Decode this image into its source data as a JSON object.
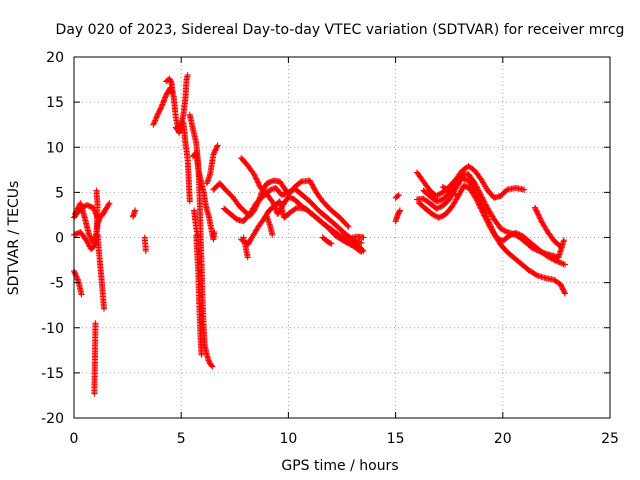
{
  "chart_data": {
    "type": "scatter",
    "title": "Day 020 of 2023, Sidereal Day-to-day VTEC variation (SDTVAR) for receiver mrcg",
    "xlabel": "GPS time / hours",
    "ylabel": "SDTVAR / TECUs",
    "xlim": [
      0,
      25
    ],
    "ylim": [
      -20,
      20
    ],
    "xticks": [
      0,
      5,
      10,
      15,
      20,
      25
    ],
    "yticks": [
      -20,
      -15,
      -10,
      -5,
      0,
      5,
      10,
      15,
      20
    ],
    "grid": true,
    "marker": "plus",
    "color": "#ff0000",
    "tracks": [
      [
        [
          0.0,
          2.2
        ],
        [
          0.3,
          3.2
        ],
        [
          0.6,
          3.6
        ],
        [
          0.9,
          3.3
        ],
        [
          1.1,
          2.2
        ],
        [
          1.3,
          2.4
        ],
        [
          1.5,
          3.2
        ],
        [
          1.65,
          3.8
        ]
      ],
      [
        [
          0.0,
          0.3
        ],
        [
          0.3,
          0.6
        ],
        [
          0.6,
          -0.4
        ],
        [
          0.8,
          -1.3
        ],
        [
          1.0,
          -0.8
        ],
        [
          1.1,
          1.5
        ],
        [
          1.2,
          2.2
        ]
      ],
      [
        [
          0.05,
          2.6
        ],
        [
          0.3,
          3.8
        ],
        [
          0.5,
          2.2
        ],
        [
          0.7,
          0.3
        ],
        [
          0.9,
          -0.6
        ],
        [
          1.05,
          0.5
        ],
        [
          1.1,
          3.5
        ],
        [
          1.05,
          5.2
        ]
      ],
      [
        [
          0.0,
          -3.7
        ],
        [
          0.2,
          -4.8
        ],
        [
          0.35,
          -6.3
        ]
      ],
      [
        [
          1.0,
          -9.5
        ],
        [
          0.98,
          -13.0
        ],
        [
          0.95,
          -17.3
        ]
      ],
      [
        [
          1.1,
          0.3
        ],
        [
          1.2,
          -2.5
        ],
        [
          1.3,
          -5.0
        ],
        [
          1.4,
          -7.9
        ]
      ],
      [
        [
          2.75,
          2.3
        ],
        [
          2.85,
          3.0
        ]
      ],
      [
        [
          3.3,
          0.0
        ],
        [
          3.35,
          -1.5
        ]
      ],
      [
        [
          3.7,
          12.5
        ],
        [
          3.9,
          13.6
        ],
        [
          4.1,
          14.6
        ],
        [
          4.3,
          15.8
        ],
        [
          4.5,
          16.6
        ],
        [
          4.65,
          15.6
        ],
        [
          4.75,
          13.3
        ],
        [
          4.9,
          11.6
        ],
        [
          5.1,
          13.5
        ],
        [
          5.2,
          15.5
        ],
        [
          5.25,
          17.5
        ],
        [
          5.3,
          18.0
        ]
      ],
      [
        [
          4.3,
          17.3
        ],
        [
          4.45,
          17.6
        ],
        [
          4.55,
          17.1
        ],
        [
          4.6,
          16.0
        ]
      ],
      [
        [
          4.75,
          12.2
        ],
        [
          4.9,
          11.7
        ],
        [
          5.0,
          11.9
        ]
      ],
      [
        [
          5.1,
          12.8
        ],
        [
          5.2,
          10.5
        ],
        [
          5.3,
          8.7
        ],
        [
          5.35,
          6.5
        ],
        [
          5.4,
          4.0
        ]
      ],
      [
        [
          5.4,
          13.6
        ],
        [
          5.55,
          12.0
        ],
        [
          5.7,
          10.5
        ],
        [
          5.8,
          8.0
        ],
        [
          5.85,
          5.0
        ],
        [
          5.9,
          1.0
        ],
        [
          5.95,
          -3.0
        ],
        [
          6.0,
          -7.0
        ],
        [
          6.05,
          -10.0
        ],
        [
          6.1,
          -12.0
        ],
        [
          6.2,
          -13.0
        ],
        [
          6.3,
          -13.8
        ],
        [
          6.45,
          -14.3
        ]
      ],
      [
        [
          5.7,
          0.2
        ],
        [
          5.8,
          -4.0
        ],
        [
          5.85,
          -8.0
        ],
        [
          5.9,
          -11.0
        ],
        [
          5.95,
          -13.0
        ]
      ],
      [
        [
          5.55,
          9.0
        ],
        [
          5.7,
          9.4
        ],
        [
          5.8,
          7.5
        ],
        [
          5.95,
          6.0
        ],
        [
          6.05,
          5.0
        ],
        [
          6.15,
          3.5
        ],
        [
          6.3,
          2.2
        ],
        [
          6.4,
          1.0
        ],
        [
          6.5,
          -0.2
        ],
        [
          6.55,
          0.6
        ]
      ],
      [
        [
          6.2,
          6.0
        ],
        [
          6.35,
          7.0
        ],
        [
          6.5,
          9.2
        ],
        [
          6.7,
          10.2
        ]
      ],
      [
        [
          5.6,
          3.0
        ],
        [
          5.7,
          1.0
        ],
        [
          5.8,
          0.0
        ]
      ],
      [
        [
          6.5,
          5.3
        ],
        [
          6.8,
          6.0
        ],
        [
          7.1,
          5.2
        ],
        [
          7.4,
          4.5
        ],
        [
          7.7,
          3.5
        ],
        [
          8.0,
          2.8
        ],
        [
          8.2,
          2.4
        ],
        [
          8.4,
          3.0
        ],
        [
          8.6,
          4.0
        ],
        [
          8.8,
          5.2
        ],
        [
          9.0,
          6.0
        ],
        [
          9.3,
          6.3
        ],
        [
          9.6,
          6.2
        ],
        [
          9.8,
          5.5
        ],
        [
          10.0,
          4.8
        ],
        [
          10.3,
          5.6
        ],
        [
          10.6,
          6.2
        ],
        [
          11.0,
          6.3
        ],
        [
          11.3,
          5.0
        ],
        [
          11.6,
          4.0
        ],
        [
          12.0,
          3.0
        ],
        [
          12.4,
          2.2
        ],
        [
          12.8,
          1.2
        ]
      ],
      [
        [
          7.0,
          3.2
        ],
        [
          7.3,
          2.6
        ],
        [
          7.6,
          2.0
        ],
        [
          7.9,
          1.8
        ],
        [
          8.2,
          2.6
        ],
        [
          8.5,
          3.8
        ],
        [
          8.8,
          4.5
        ],
        [
          9.1,
          5.2
        ],
        [
          9.4,
          5.5
        ],
        [
          9.7,
          4.7
        ],
        [
          10.0,
          5.0
        ],
        [
          10.3,
          5.4
        ],
        [
          10.6,
          4.8
        ],
        [
          11.0,
          4.0
        ],
        [
          11.4,
          3.0
        ],
        [
          11.8,
          2.2
        ],
        [
          12.2,
          1.4
        ],
        [
          12.6,
          0.5
        ],
        [
          13.0,
          -0.2
        ],
        [
          13.4,
          -0.6
        ]
      ],
      [
        [
          7.8,
          -0.2
        ],
        [
          8.1,
          -0.8
        ],
        [
          8.3,
          0.0
        ],
        [
          8.6,
          1.2
        ],
        [
          8.9,
          2.2
        ],
        [
          9.1,
          3.0
        ],
        [
          9.4,
          3.6
        ],
        [
          9.6,
          4.0
        ],
        [
          9.8,
          2.2
        ],
        [
          10.1,
          2.8
        ],
        [
          10.4,
          3.3
        ],
        [
          10.8,
          3.2
        ],
        [
          11.2,
          2.4
        ],
        [
          11.6,
          1.6
        ],
        [
          12.0,
          0.9
        ],
        [
          12.4,
          0.2
        ],
        [
          12.8,
          -0.3
        ],
        [
          13.2,
          -0.8
        ],
        [
          13.5,
          -1.5
        ]
      ],
      [
        [
          7.8,
          8.8
        ],
        [
          8.1,
          8.0
        ],
        [
          8.4,
          7.0
        ],
        [
          8.7,
          5.5
        ],
        [
          9.0,
          4.8
        ],
        [
          9.3,
          3.8
        ],
        [
          9.5,
          2.6
        ],
        [
          9.8,
          3.8
        ],
        [
          10.0,
          4.5
        ],
        [
          10.3,
          4.2
        ],
        [
          10.6,
          3.5
        ],
        [
          11.0,
          2.8
        ],
        [
          11.4,
          2.0
        ],
        [
          11.8,
          1.2
        ],
        [
          12.2,
          0.2
        ],
        [
          12.6,
          -0.4
        ],
        [
          13.0,
          -0.9
        ],
        [
          13.4,
          -1.6
        ]
      ],
      [
        [
          7.9,
          0.0
        ],
        [
          8.0,
          -1.0
        ],
        [
          8.1,
          -2.2
        ]
      ],
      [
        [
          9.0,
          2.3
        ],
        [
          9.15,
          1.3
        ],
        [
          9.25,
          0.3
        ]
      ],
      [
        [
          11.6,
          0.0
        ],
        [
          11.8,
          -0.4
        ],
        [
          12.0,
          -0.7
        ]
      ],
      [
        [
          13.0,
          0.0
        ],
        [
          13.2,
          0.1
        ],
        [
          13.5,
          0.0
        ]
      ],
      [
        [
          15.0,
          1.8
        ],
        [
          15.1,
          2.5
        ],
        [
          15.2,
          3.0
        ]
      ],
      [
        [
          15.0,
          4.4
        ],
        [
          15.15,
          4.7
        ]
      ],
      [
        [
          16.0,
          7.2
        ],
        [
          16.3,
          6.2
        ],
        [
          16.6,
          5.2
        ],
        [
          16.9,
          4.6
        ],
        [
          17.2,
          5.0
        ],
        [
          17.5,
          5.6
        ],
        [
          17.8,
          6.4
        ],
        [
          18.1,
          7.4
        ],
        [
          18.4,
          7.9
        ],
        [
          18.7,
          7.4
        ],
        [
          19.0,
          6.4
        ],
        [
          19.3,
          5.2
        ],
        [
          19.6,
          4.4
        ],
        [
          19.9,
          4.6
        ],
        [
          20.2,
          5.3
        ],
        [
          20.6,
          5.5
        ],
        [
          21.0,
          5.3
        ]
      ],
      [
        [
          16.0,
          4.2
        ],
        [
          16.3,
          4.3
        ],
        [
          16.6,
          3.8
        ],
        [
          16.9,
          3.2
        ],
        [
          17.2,
          3.5
        ],
        [
          17.5,
          4.2
        ],
        [
          17.8,
          5.4
        ],
        [
          18.1,
          6.6
        ],
        [
          18.4,
          6.3
        ],
        [
          18.7,
          5.2
        ],
        [
          19.0,
          3.8
        ],
        [
          19.3,
          2.0
        ],
        [
          19.6,
          0.4
        ],
        [
          19.9,
          -0.8
        ],
        [
          20.2,
          -1.6
        ],
        [
          20.5,
          -2.2
        ],
        [
          20.8,
          -2.8
        ],
        [
          21.2,
          -3.6
        ],
        [
          21.6,
          -4.2
        ],
        [
          22.0,
          -4.5
        ],
        [
          22.4,
          -4.7
        ],
        [
          22.7,
          -5.2
        ],
        [
          22.9,
          -6.2
        ]
      ],
      [
        [
          16.1,
          3.8
        ],
        [
          16.4,
          3.2
        ],
        [
          16.7,
          2.6
        ],
        [
          17.0,
          2.2
        ],
        [
          17.3,
          2.5
        ],
        [
          17.6,
          3.3
        ],
        [
          17.9,
          4.5
        ],
        [
          18.2,
          5.8
        ],
        [
          18.5,
          5.3
        ],
        [
          18.8,
          4.1
        ],
        [
          19.1,
          2.6
        ],
        [
          19.4,
          1.2
        ],
        [
          19.7,
          0.0
        ],
        [
          20.0,
          -0.4
        ],
        [
          20.3,
          0.2
        ],
        [
          20.6,
          0.5
        ],
        [
          20.9,
          0.2
        ],
        [
          21.2,
          -0.4
        ],
        [
          21.5,
          -1.0
        ],
        [
          21.8,
          -1.6
        ],
        [
          22.1,
          -2.1
        ],
        [
          22.4,
          -2.5
        ],
        [
          22.7,
          -2.8
        ],
        [
          22.9,
          -3.0
        ]
      ],
      [
        [
          16.3,
          5.2
        ],
        [
          16.6,
          4.6
        ],
        [
          16.9,
          4.0
        ],
        [
          17.2,
          4.2
        ],
        [
          17.5,
          4.9
        ],
        [
          17.8,
          5.8
        ],
        [
          18.1,
          7.0
        ],
        [
          18.4,
          7.0
        ],
        [
          18.7,
          6.0
        ],
        [
          19.0,
          4.6
        ],
        [
          19.3,
          3.2
        ],
        [
          19.6,
          2.0
        ],
        [
          19.9,
          1.0
        ],
        [
          20.2,
          0.6
        ],
        [
          20.5,
          0.4
        ],
        [
          20.8,
          0.0
        ],
        [
          21.1,
          -0.6
        ],
        [
          21.4,
          -1.2
        ],
        [
          21.7,
          -1.5
        ],
        [
          22.0,
          -1.8
        ],
        [
          22.3,
          -2.0
        ],
        [
          22.6,
          -2.2
        ],
        [
          22.85,
          -0.3
        ]
      ],
      [
        [
          17.2,
          5.6
        ],
        [
          17.5,
          5.2
        ],
        [
          17.8,
          4.8
        ]
      ],
      [
        [
          21.5,
          3.3
        ],
        [
          21.8,
          1.8
        ],
        [
          22.1,
          0.6
        ],
        [
          22.4,
          -0.4
        ],
        [
          22.7,
          -1.0
        ]
      ]
    ]
  }
}
